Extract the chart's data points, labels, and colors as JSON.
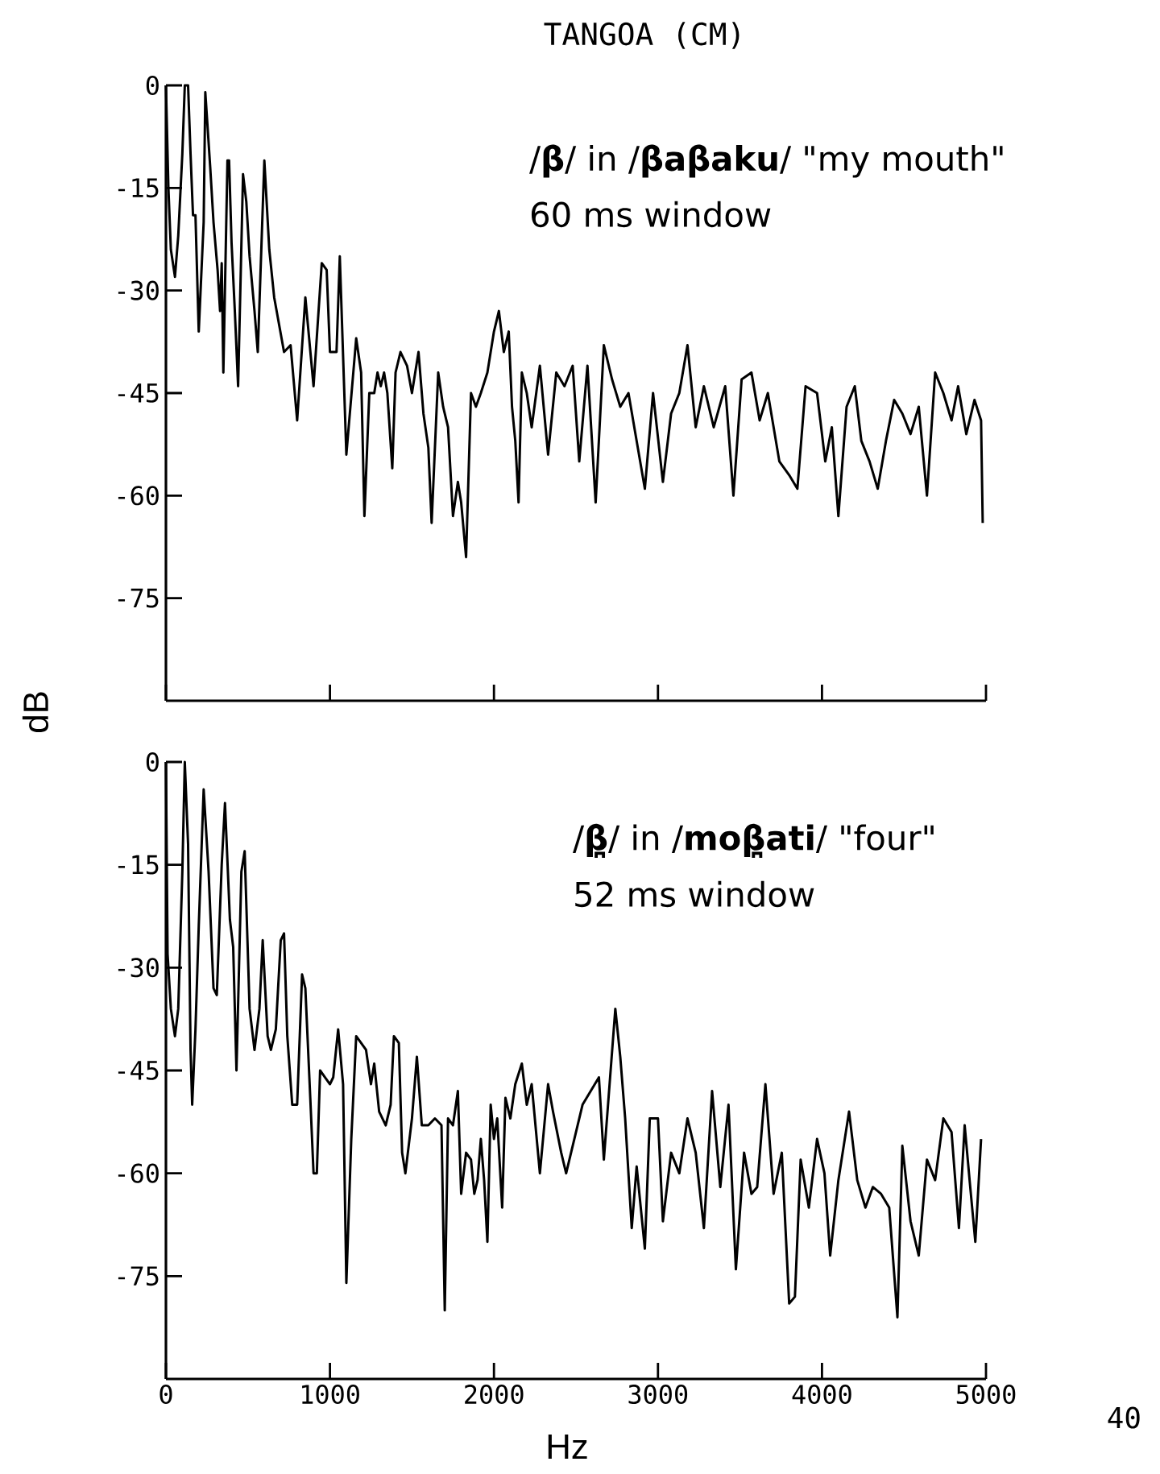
{
  "chart_data": [
    {
      "type": "line",
      "title": "TANGOA (CM)",
      "ylabel": "dB",
      "annotations": [
        "/**β**/ in /**βaβaku**/  \"my mouth\"",
        "60 ms window"
      ],
      "xlim": [
        0,
        5000
      ],
      "ylim": [
        -90,
        0
      ],
      "xticks": [
        {
          "value": 0,
          "label": null
        },
        {
          "value": 1000,
          "label": null
        },
        {
          "value": 2000,
          "label": null
        },
        {
          "value": 3000,
          "label": null
        },
        {
          "value": 4000,
          "label": null
        },
        {
          "value": 5000,
          "label": null
        }
      ],
      "yticks": [
        0,
        -15,
        -30,
        -45,
        -60,
        -75
      ],
      "tick_labels": "y",
      "line_style": "solid",
      "series": [
        {
          "color": "#000000",
          "x": [
            0,
            15,
            30,
            55,
            75,
            100,
            115,
            135,
            150,
            165,
            180,
            200,
            230,
            240,
            270,
            290,
            315,
            330,
            340,
            350,
            375,
            385,
            400,
            420,
            440,
            470,
            490,
            510,
            540,
            560,
            600,
            630,
            660,
            690,
            720,
            760,
            800,
            850,
            900,
            950,
            980,
            1000,
            1040,
            1060,
            1100,
            1160,
            1190,
            1210,
            1240,
            1270,
            1290,
            1310,
            1330,
            1350,
            1380,
            1400,
            1430,
            1470,
            1500,
            1540,
            1570,
            1600,
            1620,
            1660,
            1690,
            1720,
            1750,
            1780,
            1800,
            1830,
            1860,
            1890,
            1920,
            1960,
            2000,
            2030,
            2060,
            2090,
            2110,
            2130,
            2150,
            2170,
            2200,
            2230,
            2280,
            2330,
            2380,
            2430,
            2480,
            2520,
            2570,
            2620,
            2670,
            2720,
            2770,
            2820,
            2870,
            2920,
            2970,
            3030,
            3080,
            3130,
            3180,
            3230,
            3280,
            3340,
            3410,
            3460,
            3510,
            3570,
            3620,
            3670,
            3740,
            3800,
            3850,
            3900,
            3970,
            4020,
            4060,
            4100,
            4150,
            4200,
            4240,
            4290,
            4340,
            4390,
            4440,
            4490,
            4540,
            4590,
            4640,
            4690,
            4740,
            4790,
            4830,
            4880,
            4930,
            4970,
            4980
          ],
          "values": [
            0,
            -15,
            -24,
            -28,
            -22,
            -10,
            0,
            0,
            -10,
            -19,
            -19,
            -36,
            -20,
            -1,
            -12,
            -20,
            -27,
            -33,
            -26,
            -42,
            -11,
            -11,
            -23,
            -33,
            -44,
            -13,
            -17,
            -25,
            -33,
            -39,
            -11,
            -24,
            -31,
            -35,
            -39,
            -38,
            -49,
            -31,
            -44,
            -26,
            -27,
            -39,
            -39,
            -25,
            -54,
            -37,
            -42,
            -63,
            -45,
            -45,
            -42,
            -44,
            -42,
            -45,
            -56,
            -42,
            -39,
            -41,
            -45,
            -39,
            -48,
            -53,
            -64,
            -42,
            -47,
            -50,
            -63,
            -58,
            -61,
            -69,
            -45,
            -47,
            -45,
            -42,
            -36,
            -33,
            -39,
            -36,
            -47,
            -52,
            -61,
            -42,
            -45,
            -50,
            -41,
            -54,
            -42,
            -44,
            -41,
            -55,
            -41,
            -61,
            -38,
            -43,
            -47,
            -45,
            -52,
            -59,
            -45,
            -58,
            -48,
            -45,
            -38,
            -50,
            -44,
            -50,
            -44,
            -60,
            -43,
            -42,
            -49,
            -45,
            -55,
            -57,
            -59,
            -44,
            -45,
            -55,
            -50,
            -63,
            -47,
            -44,
            -52,
            -55,
            -59,
            -52,
            -46,
            -48,
            -51,
            -47,
            -60,
            -42,
            -45,
            -49,
            -44,
            -51,
            -46,
            -49,
            -64
          ]
        }
      ]
    },
    {
      "type": "line",
      "xlabel": "Hz",
      "annotations": [
        "/**β̪**/ in /**moβ̪ati**/  \"four\"",
        "52 ms window",
        "40"
      ],
      "xlim": [
        0,
        5000
      ],
      "ylim": [
        -90,
        0
      ],
      "xticks": [
        0,
        1000,
        2000,
        3000,
        4000,
        5000
      ],
      "yticks": [
        0,
        -15,
        -30,
        -45,
        -60,
        -75
      ],
      "line_style": "solid",
      "series": [
        {
          "color": "#000000",
          "x": [
            0,
            10,
            30,
            55,
            75,
            100,
            115,
            135,
            150,
            160,
            180,
            200,
            230,
            260,
            290,
            310,
            340,
            360,
            390,
            410,
            430,
            460,
            480,
            510,
            540,
            570,
            590,
            620,
            640,
            670,
            700,
            720,
            740,
            770,
            800,
            830,
            850,
            880,
            900,
            920,
            940,
            970,
            1000,
            1020,
            1050,
            1080,
            1100,
            1130,
            1160,
            1190,
            1220,
            1250,
            1270,
            1300,
            1340,
            1370,
            1390,
            1420,
            1440,
            1460,
            1500,
            1530,
            1560,
            1600,
            1640,
            1680,
            1700,
            1720,
            1750,
            1780,
            1800,
            1830,
            1860,
            1880,
            1900,
            1920,
            1940,
            1960,
            1980,
            2000,
            2020,
            2050,
            2070,
            2100,
            2130,
            2170,
            2200,
            2230,
            2280,
            2330,
            2360,
            2410,
            2440,
            2490,
            2540,
            2590,
            2640,
            2670,
            2705,
            2740,
            2770,
            2800,
            2840,
            2870,
            2920,
            2950,
            3000,
            3030,
            3080,
            3130,
            3180,
            3230,
            3280,
            3330,
            3380,
            3430,
            3475,
            3525,
            3570,
            3605,
            3655,
            3705,
            3755,
            3800,
            3835,
            3870,
            3920,
            3970,
            4015,
            4050,
            4100,
            4165,
            4215,
            4265,
            4310,
            4360,
            4410,
            4460,
            4490,
            4540,
            4590,
            4640,
            4690,
            4740,
            4790,
            4835,
            4870,
            4900,
            4935,
            4970
          ],
          "values": [
            0,
            -28,
            -36,
            -40,
            -36,
            -16,
            0,
            -12,
            -42,
            -50,
            -39,
            -24,
            -4,
            -16,
            -33,
            -34,
            -15,
            -6,
            -23,
            -27,
            -45,
            -16,
            -13,
            -36,
            -42,
            -36,
            -26,
            -40,
            -42,
            -39,
            -26,
            -25,
            -40,
            -50,
            -50,
            -31,
            -33,
            -49,
            -60,
            -60,
            -45,
            -46,
            -47,
            -46,
            -39,
            -47,
            -76,
            -55,
            -40,
            -41,
            -42,
            -47,
            -44,
            -51,
            -53,
            -50,
            -40,
            -41,
            -57,
            -60,
            -52,
            -43,
            -53,
            -53,
            -52,
            -53,
            -80,
            -52,
            -53,
            -48,
            -63,
            -57,
            -58,
            -63,
            -61,
            -55,
            -61,
            -70,
            -50,
            -55,
            -52,
            -65,
            -49,
            -52,
            -47,
            -44,
            -50,
            -47,
            -60,
            -47,
            -51,
            -57,
            -60,
            -55,
            -50,
            -48,
            -46,
            -58,
            -47,
            -36,
            -43,
            -52,
            -68,
            -59,
            -71,
            -52,
            -52,
            -67,
            -57,
            -60,
            -52,
            -57,
            -68,
            -48,
            -62,
            -50,
            -74,
            -57,
            -63,
            -62,
            -47,
            -63,
            -57,
            -79,
            -78,
            -58,
            -65,
            -55,
            -60,
            -72,
            -61,
            -51,
            -61,
            -65,
            -62,
            -63,
            -65,
            -81,
            -56,
            -67,
            -72,
            -58,
            -61,
            -52,
            -54,
            -68,
            -53,
            -61,
            -70,
            -55
          ]
        }
      ]
    }
  ]
}
